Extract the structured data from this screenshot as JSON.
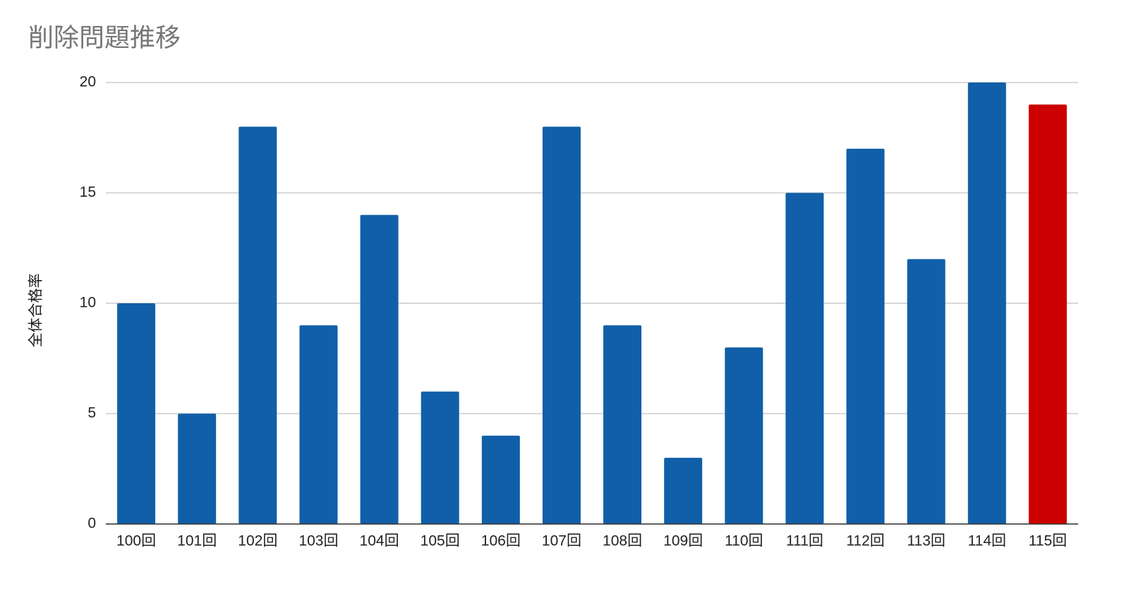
{
  "chart_data": {
    "type": "bar",
    "title": "削除問題推移",
    "y_label": "全体合格率",
    "categories": [
      "100回",
      "101回",
      "102回",
      "103回",
      "104回",
      "105回",
      "106回",
      "107回",
      "108回",
      "109回",
      "110回",
      "111回",
      "112回",
      "113回",
      "114回",
      "115回"
    ],
    "values": [
      10,
      5,
      18,
      9,
      14,
      6,
      4,
      18,
      9,
      3,
      8,
      15,
      17,
      12,
      20,
      19
    ],
    "colors": [
      "#105fa8",
      "#105fa8",
      "#105fa8",
      "#105fa8",
      "#105fa8",
      "#105fa8",
      "#105fa8",
      "#105fa8",
      "#105fa8",
      "#105fa8",
      "#105fa8",
      "#105fa8",
      "#105fa8",
      "#105fa8",
      "#105fa8",
      "#cc0000"
    ],
    "ylim": [
      0,
      20
    ],
    "yticks": [
      0,
      5,
      10,
      15,
      20
    ],
    "grid": true
  }
}
